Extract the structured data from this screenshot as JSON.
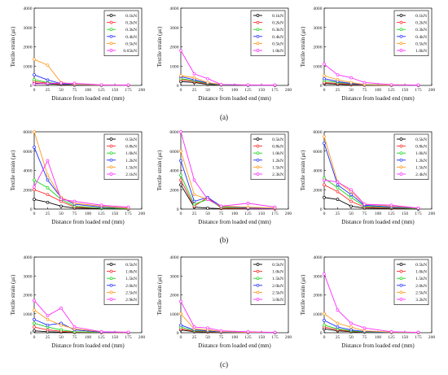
{
  "chart_data": [
    {
      "type": "line",
      "row": 0,
      "col": 0,
      "xlabel": "Distance from loaded end (mm)",
      "ylabel": "Textile strain (με)",
      "xlim": [
        0,
        200
      ],
      "ylim": [
        0,
        4000
      ],
      "xticks": [
        0,
        25,
        50,
        75,
        100,
        125,
        150,
        175,
        200
      ],
      "yticks": [
        0,
        1000,
        2000,
        3000,
        4000
      ],
      "x": [
        0,
        25,
        50,
        75,
        125,
        175
      ],
      "legend_position": "top-right",
      "series": [
        {
          "name": "0.1kN",
          "color": "#000000",
          "values": [
            120,
            80,
            40,
            10,
            5,
            0
          ]
        },
        {
          "name": "0.2kN",
          "color": "#ff2a2a",
          "values": [
            200,
            120,
            60,
            20,
            10,
            5
          ]
        },
        {
          "name": "0.3kN",
          "color": "#19d419",
          "values": [
            300,
            150,
            80,
            30,
            10,
            5
          ]
        },
        {
          "name": "0.4kN",
          "color": "#1e2cff",
          "values": [
            550,
            280,
            100,
            40,
            15,
            5
          ]
        },
        {
          "name": "0.5kN",
          "color": "#ff9a1f",
          "values": [
            1350,
            1050,
            150,
            60,
            20,
            10
          ]
        },
        {
          "name": "0.65kN",
          "color": "#ff2aff",
          "values": [
            80,
            100,
            120,
            110,
            30,
            20
          ]
        }
      ]
    },
    {
      "type": "line",
      "row": 0,
      "col": 1,
      "xlabel": "Distance from loaded end (mm)",
      "ylabel": "Textile strain (με)",
      "xlim": [
        0,
        200
      ],
      "ylim": [
        0,
        4000
      ],
      "xticks": [
        0,
        25,
        50,
        75,
        100,
        125,
        150,
        175,
        200
      ],
      "yticks": [
        0,
        1000,
        2000,
        3000,
        4000
      ],
      "x": [
        0,
        25,
        50,
        75,
        125,
        175
      ],
      "legend_position": "top-right",
      "series": [
        {
          "name": "0.1kN",
          "color": "#000000",
          "values": [
            200,
            150,
            50,
            20,
            5,
            0
          ]
        },
        {
          "name": "0.2kN",
          "color": "#ff2a2a",
          "values": [
            300,
            200,
            80,
            30,
            10,
            0
          ]
        },
        {
          "name": "0.3kN",
          "color": "#19d419",
          "values": [
            350,
            250,
            100,
            30,
            10,
            0
          ]
        },
        {
          "name": "0.4kN",
          "color": "#1e2cff",
          "values": [
            450,
            300,
            120,
            40,
            10,
            0
          ]
        },
        {
          "name": "0.5kN",
          "color": "#ff9a1f",
          "values": [
            500,
            400,
            150,
            50,
            20,
            10
          ]
        },
        {
          "name": "1.0kN",
          "color": "#ff2aff",
          "values": [
            1800,
            600,
            350,
            50,
            30,
            20
          ]
        }
      ]
    },
    {
      "type": "line",
      "row": 0,
      "col": 2,
      "xlabel": "Distance from loaded end (mm)",
      "ylabel": "Textile strain (με)",
      "xlim": [
        0,
        200
      ],
      "ylim": [
        0,
        4000
      ],
      "xticks": [
        0,
        25,
        50,
        75,
        100,
        125,
        150,
        175,
        200
      ],
      "yticks": [
        0,
        1000,
        2000,
        3000,
        4000
      ],
      "x": [
        0,
        25,
        50,
        75,
        125,
        175
      ],
      "legend_position": "top-right",
      "series": [
        {
          "name": "0.1kN",
          "color": "#000000",
          "values": [
            100,
            60,
            30,
            10,
            5,
            0
          ]
        },
        {
          "name": "0.2kN",
          "color": "#ff2a2a",
          "values": [
            150,
            100,
            50,
            20,
            10,
            0
          ]
        },
        {
          "name": "0.3kN",
          "color": "#19d419",
          "values": [
            250,
            150,
            80,
            30,
            10,
            0
          ]
        },
        {
          "name": "0.4kN",
          "color": "#1e2cff",
          "values": [
            350,
            200,
            100,
            40,
            10,
            0
          ]
        },
        {
          "name": "0.5kN",
          "color": "#ff9a1f",
          "values": [
            500,
            300,
            150,
            50,
            20,
            10
          ]
        },
        {
          "name": "1.0kN",
          "color": "#ff2aff",
          "values": [
            1100,
            550,
            400,
            150,
            40,
            20
          ]
        }
      ]
    },
    {
      "type": "line",
      "row": 1,
      "col": 0,
      "xlabel": "Distance from loaded end (mm)",
      "ylabel": "Textile strain (με)",
      "xlim": [
        0,
        200
      ],
      "ylim": [
        0,
        8000
      ],
      "xticks": [
        0,
        25,
        50,
        75,
        100,
        125,
        150,
        175,
        200
      ],
      "yticks": [
        0,
        2000,
        4000,
        6000,
        8000
      ],
      "x": [
        0,
        25,
        50,
        75,
        125,
        175
      ],
      "legend_position": "top-right",
      "series": [
        {
          "name": "0.5kN",
          "color": "#000000",
          "values": [
            1000,
            700,
            300,
            100,
            50,
            0
          ]
        },
        {
          "name": "0.8kN",
          "color": "#ff2a2a",
          "values": [
            2000,
            1500,
            800,
            200,
            100,
            50
          ]
        },
        {
          "name": "1.0kN",
          "color": "#19d419",
          "values": [
            3000,
            2200,
            1000,
            300,
            100,
            50
          ]
        },
        {
          "name": "1.2kN",
          "color": "#1e2cff",
          "values": [
            6400,
            3000,
            1200,
            500,
            200,
            100
          ]
        },
        {
          "name": "1.5kN",
          "color": "#ff9a1f",
          "values": [
            8000,
            3500,
            1200,
            600,
            300,
            100
          ]
        },
        {
          "name": "2.1kN",
          "color": "#ff2aff",
          "values": [
            2300,
            5000,
            1000,
            800,
            400,
            200
          ]
        }
      ]
    },
    {
      "type": "line",
      "row": 1,
      "col": 1,
      "xlabel": "Distance from loaded end (mm)",
      "ylabel": "Textile strain (με)",
      "xlim": [
        0,
        200
      ],
      "ylim": [
        0,
        8000
      ],
      "xticks": [
        0,
        25,
        50,
        75,
        100,
        125,
        150,
        175,
        200
      ],
      "yticks": [
        0,
        2000,
        4000,
        6000,
        8000
      ],
      "x": [
        0,
        25,
        50,
        75,
        125,
        175
      ],
      "legend_position": "top-right",
      "series": [
        {
          "name": "0.5kN",
          "color": "#000000",
          "values": [
            2500,
            200,
            100,
            50,
            30,
            0
          ]
        },
        {
          "name": "0.8kN",
          "color": "#ff2a2a",
          "values": [
            3000,
            300,
            1200,
            100,
            50,
            0
          ]
        },
        {
          "name": "1.0kN",
          "color": "#19d419",
          "values": [
            3500,
            500,
            1000,
            200,
            100,
            50
          ]
        },
        {
          "name": "1.2kN",
          "color": "#1e2cff",
          "values": [
            5000,
            800,
            1200,
            300,
            100,
            50
          ]
        },
        {
          "name": "1.5kN",
          "color": "#ff9a1f",
          "values": [
            6000,
            1500,
            1000,
            300,
            200,
            100
          ]
        },
        {
          "name": "2.3kN",
          "color": "#ff2aff",
          "values": [
            8000,
            3000,
            1000,
            300,
            600,
            200
          ]
        }
      ]
    },
    {
      "type": "line",
      "row": 1,
      "col": 2,
      "xlabel": "Distance from loaded end (mm)",
      "ylabel": "Textile strain (με)",
      "xlim": [
        0,
        200
      ],
      "ylim": [
        0,
        8000
      ],
      "xticks": [
        0,
        25,
        50,
        75,
        100,
        125,
        150,
        175,
        200
      ],
      "yticks": [
        0,
        2000,
        4000,
        6000,
        8000
      ],
      "x": [
        0,
        25,
        50,
        75,
        125,
        175
      ],
      "legend_position": "top-right",
      "series": [
        {
          "name": "0.5kN",
          "color": "#000000",
          "values": [
            1200,
            1000,
            300,
            100,
            50,
            0
          ]
        },
        {
          "name": "0.8kN",
          "color": "#ff2a2a",
          "values": [
            2500,
            1800,
            800,
            200,
            100,
            50
          ]
        },
        {
          "name": "1.0kN",
          "color": "#19d419",
          "values": [
            3200,
            2200,
            1200,
            300,
            150,
            50
          ]
        },
        {
          "name": "1.2kN",
          "color": "#1e2cff",
          "values": [
            6800,
            2500,
            1500,
            400,
            200,
            100
          ]
        },
        {
          "name": "1.5kN",
          "color": "#ff9a1f",
          "values": [
            7500,
            2800,
            1800,
            500,
            300,
            100
          ]
        },
        {
          "name": "2.4kN",
          "color": "#ff2aff",
          "values": [
            3000,
            2800,
            2000,
            500,
            400,
            100
          ]
        }
      ]
    },
    {
      "type": "line",
      "row": 2,
      "col": 0,
      "xlabel": "Distance from loaded end (mm)",
      "ylabel": "Textile strain (με)",
      "xlim": [
        0,
        200
      ],
      "ylim": [
        0,
        4000
      ],
      "xticks": [
        0,
        25,
        50,
        75,
        100,
        125,
        150,
        175,
        200
      ],
      "yticks": [
        0,
        1000,
        2000,
        3000,
        4000
      ],
      "x": [
        0,
        25,
        50,
        75,
        125,
        175
      ],
      "legend_position": "top-right",
      "series": [
        {
          "name": "0.5kN",
          "color": "#000000",
          "values": [
            100,
            50,
            30,
            10,
            5,
            0
          ]
        },
        {
          "name": "1.0kN",
          "color": "#ff2a2a",
          "values": [
            300,
            150,
            80,
            30,
            10,
            0
          ]
        },
        {
          "name": "1.5kN",
          "color": "#19d419",
          "values": [
            500,
            300,
            150,
            50,
            20,
            10
          ]
        },
        {
          "name": "2.0kN",
          "color": "#1e2cff",
          "values": [
            700,
            400,
            500,
            150,
            30,
            10
          ]
        },
        {
          "name": "2.5kN",
          "color": "#ff9a1f",
          "values": [
            1200,
            700,
            400,
            200,
            50,
            20
          ]
        },
        {
          "name": "2.9kN",
          "color": "#ff2aff",
          "values": [
            1700,
            900,
            1300,
            300,
            50,
            30
          ]
        }
      ]
    },
    {
      "type": "line",
      "row": 2,
      "col": 1,
      "xlabel": "Distance from loaded end (mm)",
      "ylabel": "Textile strain (με)",
      "xlim": [
        0,
        200
      ],
      "ylim": [
        0,
        4000
      ],
      "xticks": [
        0,
        25,
        50,
        75,
        100,
        125,
        150,
        175,
        200
      ],
      "yticks": [
        0,
        1000,
        2000,
        3000,
        4000
      ],
      "x": [
        0,
        25,
        50,
        75,
        125,
        175
      ],
      "legend_position": "top-right",
      "series": [
        {
          "name": "0.5kN",
          "color": "#000000",
          "values": [
            150,
            50,
            30,
            10,
            5,
            0
          ]
        },
        {
          "name": "1.0kN",
          "color": "#ff2a2a",
          "values": [
            200,
            80,
            50,
            20,
            10,
            0
          ]
        },
        {
          "name": "1.5kN",
          "color": "#19d419",
          "values": [
            300,
            100,
            80,
            30,
            10,
            0
          ]
        },
        {
          "name": "2.0kN",
          "color": "#1e2cff",
          "values": [
            400,
            150,
            100,
            40,
            10,
            0
          ]
        },
        {
          "name": "2.5kN",
          "color": "#ff9a1f",
          "values": [
            1000,
            200,
            150,
            60,
            20,
            10
          ]
        },
        {
          "name": "3.0kN",
          "color": "#ff2aff",
          "values": [
            1650,
            300,
            250,
            100,
            50,
            20
          ]
        }
      ]
    },
    {
      "type": "line",
      "row": 2,
      "col": 2,
      "xlabel": "Distance from loaded end (mm)",
      "ylabel": "Textile strain (με)",
      "xlim": [
        0,
        200
      ],
      "ylim": [
        0,
        4000
      ],
      "xticks": [
        0,
        25,
        50,
        75,
        100,
        125,
        150,
        175,
        200
      ],
      "yticks": [
        0,
        1000,
        2000,
        3000,
        4000
      ],
      "x": [
        0,
        25,
        50,
        75,
        125,
        175
      ],
      "legend_position": "top-right",
      "series": [
        {
          "name": "0.5kN",
          "color": "#000000",
          "values": [
            200,
            100,
            50,
            20,
            10,
            0
          ]
        },
        {
          "name": "1.0kN",
          "color": "#ff2a2a",
          "values": [
            300,
            150,
            80,
            30,
            10,
            0
          ]
        },
        {
          "name": "1.5kN",
          "color": "#19d419",
          "values": [
            400,
            200,
            100,
            40,
            10,
            0
          ]
        },
        {
          "name": "2.0kN",
          "color": "#1e2cff",
          "values": [
            650,
            300,
            150,
            60,
            20,
            10
          ]
        },
        {
          "name": "2.5kN",
          "color": "#ff9a1f",
          "values": [
            1000,
            500,
            300,
            100,
            30,
            10
          ]
        },
        {
          "name": "3.2kN",
          "color": "#ff2aff",
          "values": [
            3100,
            1200,
            500,
            250,
            50,
            20
          ]
        }
      ]
    }
  ],
  "row_labels": [
    "(a)",
    "(b)",
    "(c)"
  ]
}
